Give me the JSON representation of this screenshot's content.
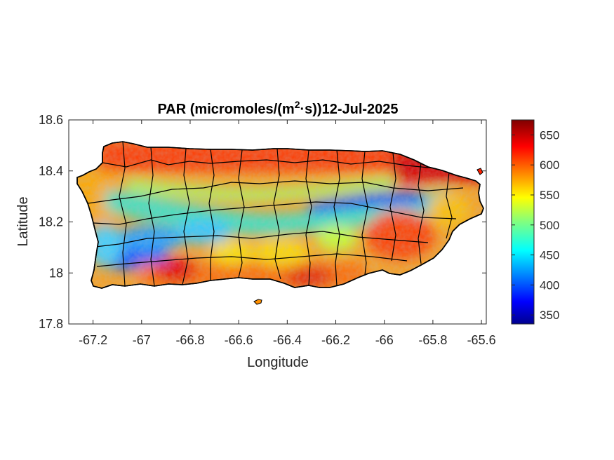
{
  "chart_data": {
    "type": "heatmap",
    "title": {
      "main": "PAR (micromoles/(m",
      "superscript": "2",
      "after": "·s))12-Jul-2025"
    },
    "xlabel": "Longitude",
    "ylabel": "Latitude",
    "xlim": [
      -67.3,
      -65.58
    ],
    "ylim": [
      17.8,
      18.6
    ],
    "xticks": [
      -67.2,
      -67,
      -66.8,
      -66.6,
      -66.4,
      -66.2,
      -66,
      -65.8,
      -65.6
    ],
    "xtick_labels": [
      "-67.2",
      "-67",
      "-66.8",
      "-66.6",
      "-66.4",
      "-66.2",
      "-66",
      "-65.8",
      "-65.6"
    ],
    "yticks": [
      17.8,
      18,
      18.2,
      18.4,
      18.6
    ],
    "ytick_labels": [
      "17.8",
      "18",
      "18.2",
      "18.4",
      "18.6"
    ],
    "colorbar": {
      "colormap": "jet",
      "range": [
        335,
        675
      ],
      "ticks": [
        350,
        400,
        450,
        500,
        550,
        600,
        650
      ],
      "tick_labels": [
        "350",
        "400",
        "450",
        "500",
        "550",
        "600",
        "650"
      ]
    },
    "grid": false,
    "regions": [
      {
        "name": "north-coast",
        "approx_value": 630
      },
      {
        "name": "northeast-coast",
        "approx_value": 660
      },
      {
        "name": "central-band",
        "approx_value": 460
      },
      {
        "name": "northeast-interior-band",
        "approx_value": 380
      },
      {
        "name": "southwest-interior",
        "approx_value": 400
      },
      {
        "name": "south-coast",
        "approx_value": 600
      },
      {
        "name": "west-coast",
        "approx_value": 570
      },
      {
        "name": "east-interior",
        "approx_value": 610
      }
    ]
  }
}
